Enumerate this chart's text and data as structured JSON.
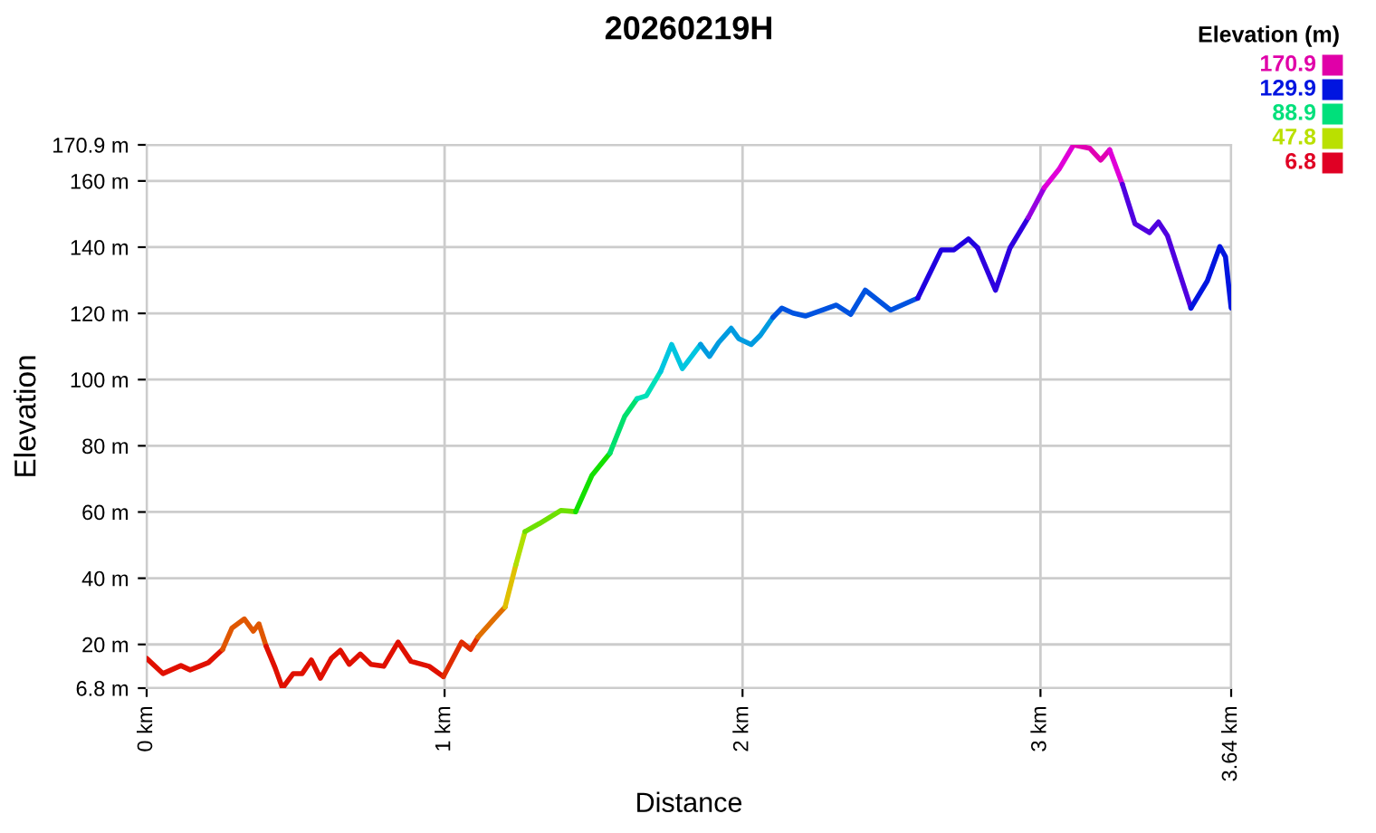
{
  "chart_data": {
    "type": "line",
    "title": "20260219H",
    "xlabel": "Distance",
    "ylabel": "Elevation",
    "series": [
      {
        "x": [
          0,
          0.055,
          0.115,
          0.146,
          0.207,
          0.255
        ],
        "values": [
          15.8,
          11.2,
          13.6,
          12.3,
          14.5,
          18.5
        ]
      },
      {
        "x": [
          0.255,
          0.286,
          0.328,
          0.358,
          0.377,
          0.401
        ],
        "values": [
          18.5,
          24.9,
          27.7,
          24,
          26.2,
          19.5
        ]
      },
      {
        "x": [
          0.401,
          0.431,
          0.456,
          0.492,
          0.522,
          0.553,
          0.583,
          0.62,
          0.65,
          0.68,
          0.717,
          0.753,
          0.796,
          0.844,
          0.887,
          0.948,
          0.996
        ],
        "values": [
          19.5,
          13,
          6.8,
          11.2,
          11.2,
          15.3,
          9.8,
          15.8,
          18.2,
          14,
          17.1,
          14,
          13.4,
          20.7,
          14.9,
          13.4,
          10.3
        ]
      },
      {
        "x": [
          0.996,
          1.057,
          1.087,
          1.112
        ],
        "values": [
          10.3,
          20.7,
          18.5,
          22.2
        ]
      },
      {
        "x": [
          1.112,
          1.166,
          1.203
        ],
        "values": [
          22.2,
          27.7,
          31.3
        ]
      },
      {
        "x": [
          1.203,
          1.239
        ],
        "values": [
          31.3,
          44
        ]
      },
      {
        "x": [
          1.239,
          1.27
        ],
        "values": [
          44,
          54.1
        ]
      },
      {
        "x": [
          1.27,
          1.318,
          1.391,
          1.44
        ],
        "values": [
          54.1,
          56.5,
          60.5,
          60.1
        ]
      },
      {
        "x": [
          1.44,
          1.494,
          1.555
        ],
        "values": [
          60.1,
          71,
          77.8
        ]
      },
      {
        "x": [
          1.555,
          1.604,
          1.646
        ],
        "values": [
          77.8,
          88.8,
          94.2
        ]
      },
      {
        "x": [
          1.646,
          1.677,
          1.725
        ],
        "values": [
          94.2,
          95.1,
          102.4
        ]
      },
      {
        "x": [
          1.725,
          1.762,
          1.798,
          1.859
        ],
        "values": [
          102.4,
          110.6,
          103.3,
          110.6
        ]
      },
      {
        "x": [
          1.859,
          1.889,
          1.92,
          1.962,
          1.987,
          2.029,
          2.06,
          2.102
        ],
        "values": [
          110.6,
          107,
          111.2,
          115.5,
          112.4,
          110.6,
          113.4,
          118.8
        ]
      },
      {
        "x": [
          2.102,
          2.132,
          2.169,
          2.211,
          2.315,
          2.363,
          2.412,
          2.497,
          2.588
        ],
        "values": [
          118.8,
          121.6,
          120.1,
          119.2,
          122.5,
          119.7,
          127,
          121,
          124.6
        ]
      },
      {
        "x": [
          2.588,
          2.667,
          2.71,
          2.758,
          2.789
        ],
        "values": [
          124.6,
          139.2,
          139.2,
          142.5,
          139.8
        ]
      },
      {
        "x": [
          2.789,
          2.849,
          2.898,
          2.959
        ],
        "values": [
          139.8,
          127,
          139.8,
          148.9
        ]
      },
      {
        "x": [
          2.959,
          3.013
        ],
        "values": [
          148.9,
          158
        ]
      },
      {
        "x": [
          3.013,
          3.062,
          3.111
        ],
        "values": [
          158,
          163.5,
          170.9
        ]
      },
      {
        "x": [
          3.111,
          3.165,
          3.202,
          3.232
        ],
        "values": [
          170.9,
          169.9,
          166.3,
          169.4
        ]
      },
      {
        "x": [
          3.232,
          3.275
        ],
        "values": [
          169.4,
          159
        ]
      },
      {
        "x": [
          3.275,
          3.317,
          3.366,
          3.396,
          3.426,
          3.505
        ],
        "values": [
          159,
          147.1,
          144.4,
          147.6,
          143.5,
          121.6
        ]
      },
      {
        "x": [
          3.505,
          3.56,
          3.602,
          3.621,
          3.64
        ],
        "values": [
          121.6,
          129.8,
          140.2,
          137.1,
          121.6
        ]
      }
    ],
    "xlim": [
      0,
      3.64
    ],
    "xticks": [
      {
        "value": 0,
        "label": "0 km"
      },
      {
        "value": 1,
        "label": "1 km"
      },
      {
        "value": 2,
        "label": "2 km"
      },
      {
        "value": 3,
        "label": "3 km"
      },
      {
        "value": 3.64,
        "label": "3.64 km"
      }
    ],
    "ylim": [
      6.8,
      170.9
    ],
    "yticks": [
      {
        "value": 6.8,
        "label": "6.8 m"
      },
      {
        "value": 20,
        "label": "20 m"
      },
      {
        "value": 40,
        "label": "40 m"
      },
      {
        "value": 60,
        "label": "60 m"
      },
      {
        "value": 80,
        "label": "80 m"
      },
      {
        "value": 100,
        "label": "100 m"
      },
      {
        "value": 120,
        "label": "120 m"
      },
      {
        "value": 140,
        "label": "140 m"
      },
      {
        "value": 160,
        "label": "160 m"
      },
      {
        "value": 170.9,
        "label": "170.9 m"
      }
    ],
    "grid": true,
    "clabel": "Elevation (m)",
    "cticks": [
      170.9,
      129.9,
      88.9,
      47.8,
      6.8
    ]
  }
}
